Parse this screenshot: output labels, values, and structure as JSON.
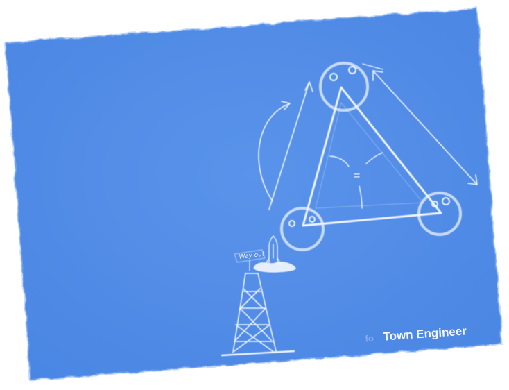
{
  "card": {
    "background_color": "#4a86e3",
    "chalk_color": "#eef4ff"
  },
  "sketch": {
    "signpost_label": "Way out",
    "equals_sign": "=",
    "caption": "Town Engineer",
    "caption_faint_prefix": "fo"
  }
}
